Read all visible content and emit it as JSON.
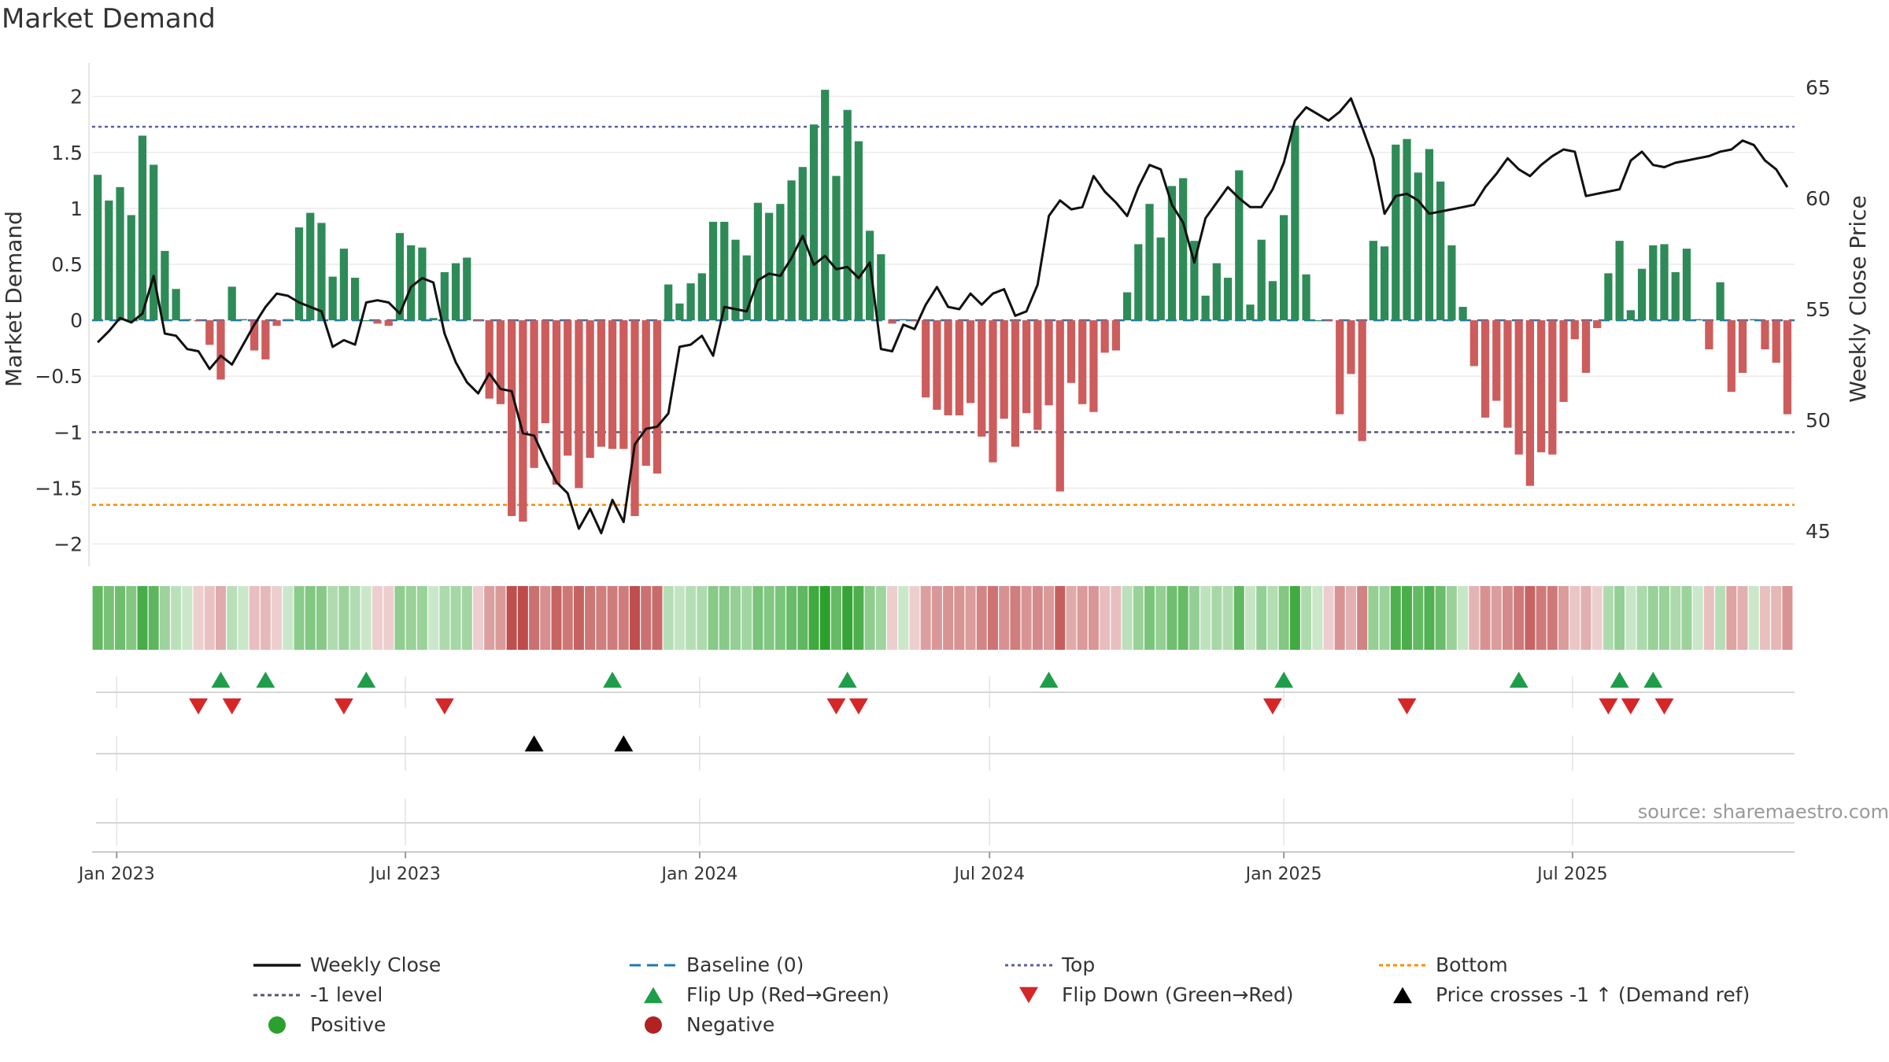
{
  "page": {
    "title": "Market Demand",
    "source": "source: sharemaestro.com"
  },
  "colors": {
    "positive": "#2e8b57",
    "negative": "#cd5c5c",
    "close": "#111111",
    "baseline": "#1f77b4",
    "top": "#5b5ea6",
    "minus1": "#555577",
    "bottom": "#ff8c00",
    "flip_up": "#1e9e4a",
    "flip_down": "#d62728",
    "demand_ref": "#000000",
    "legend_positive": "#2ca02c",
    "legend_negative": "#b22222"
  },
  "chart_data": {
    "type": "bar",
    "title": "Market Demand",
    "xlabel": "",
    "ylabel": "Market Demand",
    "y2label": "Weekly Close Price",
    "ylim": [
      -2.2,
      2.3
    ],
    "y2lim": [
      43.4,
      66.1
    ],
    "yticks": [
      2,
      1.5,
      1,
      0.5,
      0,
      -0.5,
      -1,
      -1.5,
      -2
    ],
    "ytick_labels": [
      "2",
      "1.5",
      "1",
      "0.5",
      "0",
      "−0.5",
      "−1",
      "−1.5",
      "−2"
    ],
    "y2ticks": [
      65,
      60,
      55,
      50,
      45
    ],
    "y2tick_labels": [
      "65",
      "60",
      "55",
      "50",
      "45"
    ],
    "xtick_labels": [
      "Jan 2023",
      "Jul 2023",
      "Jan 2024",
      "Jul 2024",
      "Jan 2025",
      "Jul 2025"
    ],
    "xtick_week_index": [
      1.7,
      27.5,
      53.8,
      79.7,
      106.0,
      131.8
    ],
    "reference_lines": {
      "top": 1.73,
      "minus1": -1.0,
      "bottom": -1.65,
      "baseline": 0
    },
    "demand": [
      1.3,
      1.07,
      1.19,
      0.94,
      1.65,
      1.39,
      0.62,
      0.28,
      0.01,
      -0.01,
      -0.22,
      -0.53,
      0.3,
      0.01,
      -0.27,
      -0.35,
      -0.05,
      0.01,
      0.83,
      0.96,
      0.87,
      0.39,
      0.64,
      0.38,
      0,
      -0.03,
      -0.05,
      0.78,
      0.67,
      0.65,
      0.02,
      0.43,
      0.51,
      0.56,
      -0.01,
      -0.7,
      -0.75,
      -1.75,
      -1.8,
      -1.32,
      -0.92,
      -1.47,
      -1.21,
      -1.5,
      -1.23,
      -1.13,
      -1.15,
      -1.15,
      -1.75,
      -1.3,
      -1.37,
      0.32,
      0.15,
      0.33,
      0.42,
      0.88,
      0.88,
      0.72,
      0.58,
      1.05,
      0.96,
      1.04,
      1.25,
      1.37,
      1.75,
      2.06,
      1.29,
      1.88,
      1.6,
      0.8,
      0.59,
      -0.03,
      0.01,
      -0.01,
      -0.69,
      -0.8,
      -0.85,
      -0.85,
      -0.74,
      -1.04,
      -1.27,
      -0.88,
      -1.13,
      -0.83,
      -0.98,
      -0.76,
      -1.53,
      -0.56,
      -0.75,
      -0.82,
      -0.29,
      -0.27,
      0.25,
      0.68,
      1.04,
      0.74,
      1.2,
      1.27,
      0.71,
      0.22,
      0.51,
      0.38,
      1.34,
      0.14,
      0.72,
      0.35,
      0.94,
      1.74,
      0.41,
      0,
      -0.01,
      -0.84,
      -0.48,
      -1.08,
      0.71,
      0.66,
      1.57,
      1.62,
      1.32,
      1.53,
      1.24,
      0.67,
      0.12,
      -0.41,
      -0.87,
      -0.72,
      -0.96,
      -1.2,
      -1.48,
      -1.18,
      -1.2,
      -0.73,
      -0.17,
      -0.47,
      -0.07,
      0.42,
      0.71,
      0.09,
      0.46,
      0.67,
      0.68,
      0.43,
      0.64,
      0.01,
      -0.26,
      0.34,
      -0.64,
      -0.47,
      0.01,
      -0.26,
      -0.38,
      -0.84
    ],
    "close": [
      53.5,
      54,
      54.6,
      54.4,
      54.8,
      56.5,
      53.9,
      53.8,
      53.2,
      53.1,
      52.3,
      52.9,
      52.5,
      53.4,
      54.3,
      55.1,
      55.7,
      55.6,
      55.3,
      55.1,
      54.9,
      53.3,
      53.6,
      53.4,
      55.3,
      55.4,
      55.3,
      54.8,
      56,
      56.4,
      56.2,
      53.9,
      52.6,
      51.7,
      51.2,
      52.1,
      51.4,
      51.3,
      49.4,
      49.3,
      48.2,
      47.2,
      46.7,
      45.1,
      46,
      44.9,
      46.4,
      45.4,
      48.9,
      49.6,
      49.7,
      50.3,
      53.3,
      53.4,
      53.8,
      52.9,
      55.1,
      55,
      54.9,
      56.3,
      56.6,
      56.5,
      57.3,
      58.3,
      57,
      57.4,
      56.8,
      56.9,
      56.4,
      57.1,
      53.2,
      53.1,
      54.3,
      54.1,
      55.2,
      56,
      55.1,
      55,
      55.7,
      55.2,
      55.7,
      55.9,
      54.7,
      54.9,
      56.1,
      59.2,
      59.9,
      59.5,
      59.6,
      61,
      60.3,
      59.8,
      59.2,
      60.5,
      61.5,
      61.3,
      59.7,
      58.9,
      57.1,
      59.1,
      59.8,
      60.5,
      60,
      59.6,
      59.6,
      60.4,
      61.6,
      63.5,
      64.1,
      63.8,
      63.5,
      63.9,
      64.5,
      63.2,
      61.8,
      59.3,
      60.1,
      60.2,
      59.9,
      59.3,
      59.4,
      59.5,
      59.6,
      59.7,
      60.5,
      61.1,
      61.8,
      61.3,
      61,
      61.5,
      61.9,
      62.2,
      62.1,
      60.1,
      60.2,
      60.3,
      60.4,
      61.7,
      62.1,
      61.5,
      61.4,
      61.6,
      61.7,
      61.8,
      61.9,
      62.1,
      62.2,
      62.6,
      62.4,
      61.7,
      61.3,
      60.5
    ],
    "intensity_strip": [
      0.68,
      0.54,
      0.6,
      0.47,
      0.83,
      0.7,
      0.31,
      0.14,
      0.02,
      0.02,
      0.11,
      0.27,
      0.15,
      0.02,
      0.14,
      0.18,
      0.03,
      0.02,
      0.42,
      0.48,
      0.44,
      0.2,
      0.32,
      0.19,
      0.02,
      0.02,
      0.03,
      0.39,
      0.34,
      0.33,
      0.02,
      0.22,
      0.26,
      0.28,
      0.02,
      0.35,
      0.38,
      0.88,
      0.9,
      0.66,
      0.46,
      0.74,
      0.61,
      0.75,
      0.62,
      0.57,
      0.58,
      0.58,
      0.88,
      0.65,
      0.69,
      0.16,
      0.08,
      0.17,
      0.21,
      0.44,
      0.44,
      0.36,
      0.29,
      0.53,
      0.48,
      0.52,
      0.63,
      0.69,
      0.88,
      1.0,
      0.65,
      0.94,
      0.8,
      0.4,
      0.3,
      0.02,
      0.02,
      0.02,
      0.35,
      0.4,
      0.43,
      0.43,
      0.37,
      0.52,
      0.64,
      0.44,
      0.57,
      0.42,
      0.49,
      0.38,
      0.77,
      0.28,
      0.38,
      0.41,
      0.15,
      0.14,
      0.13,
      0.34,
      0.52,
      0.37,
      0.6,
      0.64,
      0.36,
      0.11,
      0.26,
      0.19,
      0.67,
      0.07,
      0.36,
      0.18,
      0.47,
      0.87,
      0.21,
      0.02,
      0.02,
      0.42,
      0.24,
      0.54,
      0.36,
      0.33,
      0.79,
      0.81,
      0.66,
      0.77,
      0.62,
      0.34,
      0.06,
      0.21,
      0.44,
      0.36,
      0.48,
      0.6,
      0.74,
      0.59,
      0.6,
      0.37,
      0.09,
      0.24,
      0.04,
      0.21,
      0.36,
      0.05,
      0.23,
      0.34,
      0.34,
      0.22,
      0.32,
      0.02,
      0.13,
      0.17,
      0.32,
      0.24,
      0.02,
      0.13,
      0.19,
      0.42
    ],
    "flip_up_weeks": [
      11,
      15,
      24,
      46,
      67,
      85,
      106,
      127,
      136,
      139
    ],
    "flip_down_weeks": [
      9,
      12,
      22,
      31,
      66,
      68,
      105,
      117,
      135,
      137,
      140
    ],
    "demand_ref_weeks": [
      39,
      47
    ],
    "legend": [
      [
        "Weekly Close",
        "Baseline (0)",
        "Top",
        "Bottom"
      ],
      [
        "-1 level",
        "Flip Up (Red→Green)",
        "Flip Down (Green→Red)",
        "Price crosses -1 ↑ (Demand ref)"
      ],
      [
        "Positive",
        "Negative"
      ]
    ]
  }
}
